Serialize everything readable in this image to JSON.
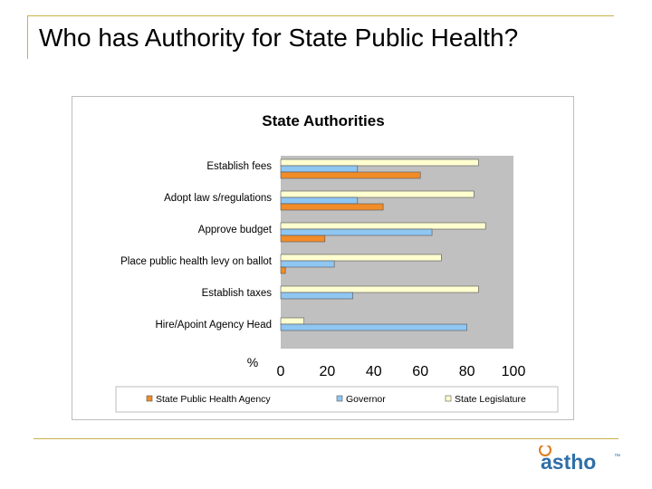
{
  "slide": {
    "title": "Who has Authority for State Public Health?"
  },
  "logo": {
    "text": "astho",
    "tm": "™",
    "colors": {
      "orange": "#e07a1b",
      "blue": "#2f6fa8"
    }
  },
  "chart_data": {
    "type": "bar",
    "orientation": "horizontal",
    "title": "State Authorities",
    "xlabel": "%",
    "ylabel": "",
    "xlim": [
      0,
      100
    ],
    "xticks": [
      0,
      20,
      40,
      60,
      80,
      100
    ],
    "grid": false,
    "plot_background": "#c0c0c0",
    "legend_position": "bottom",
    "categories": [
      "Establish fees",
      "Adopt law s/regulations",
      "Approve budget",
      "Place public health levy on ballot",
      "Establish taxes",
      "Hire/Apoint Agency Head"
    ],
    "series": [
      {
        "name": "State Public Health Agency",
        "color": "#f28c28",
        "values": [
          60,
          44,
          19,
          2,
          0,
          0
        ]
      },
      {
        "name": "Governor",
        "color": "#8fc6f2",
        "values": [
          33,
          33,
          65,
          23,
          31,
          80
        ]
      },
      {
        "name": "State Legislature",
        "color": "#ffffd0",
        "values": [
          85,
          83,
          88,
          69,
          85,
          10
        ]
      }
    ]
  }
}
